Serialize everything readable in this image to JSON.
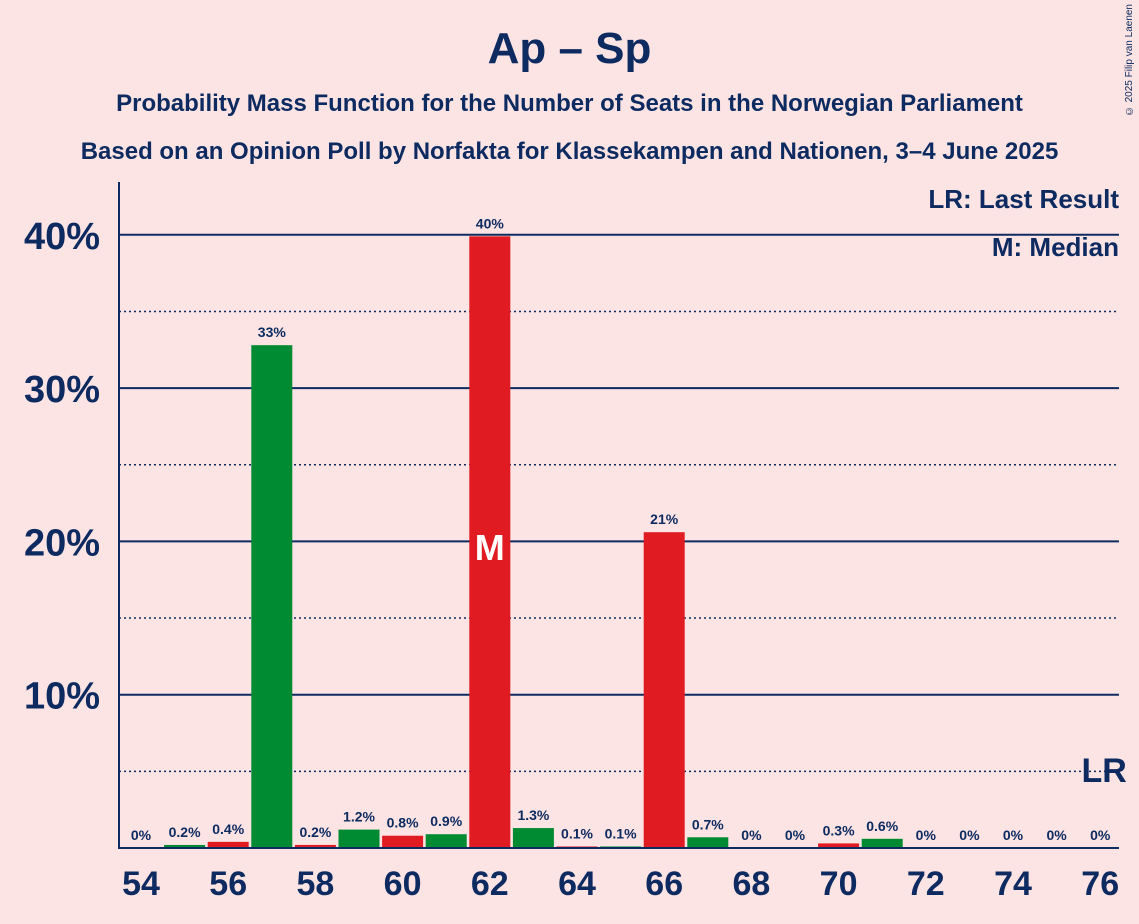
{
  "title": "Ap – Sp",
  "subtitle1": "Probability Mass Function for the Number of Seats in the Norwegian Parliament",
  "subtitle2": "Based on an Opinion Poll by Norfakta for Klassekampen and Nationen, 3–4 June 2025",
  "copyright": "© 2025 Filip van Laenen",
  "legend": {
    "last_result": "LR: Last Result",
    "median": "M: Median"
  },
  "colors": {
    "green": "#008a32",
    "red": "#e01b22",
    "axis": "#0d2b61",
    "background": "#fde4e4"
  },
  "chart_data": {
    "type": "bar",
    "xlabel": "",
    "ylabel": "",
    "ylim": [
      0,
      43
    ],
    "x_ticks": [
      54,
      56,
      58,
      60,
      62,
      64,
      66,
      68,
      70,
      72,
      74,
      76
    ],
    "y_ticks": [
      10,
      20,
      30,
      40
    ],
    "y_tick_labels": [
      "10%",
      "20%",
      "30%",
      "40%"
    ],
    "y_dotted": [
      5,
      15,
      25,
      35
    ],
    "median_seat": 62,
    "median_label": "M",
    "last_result_seat": 76,
    "last_result_label": "LR",
    "bars": [
      {
        "seat": 54,
        "value": 0,
        "label": "0%",
        "color": "red"
      },
      {
        "seat": 55,
        "value": 0.2,
        "label": "0.2%",
        "color": "green"
      },
      {
        "seat": 56,
        "value": 0.4,
        "label": "0.4%",
        "color": "red"
      },
      {
        "seat": 57,
        "value": 32.8,
        "label": "33%",
        "color": "green"
      },
      {
        "seat": 58,
        "value": 0.2,
        "label": "0.2%",
        "color": "red"
      },
      {
        "seat": 59,
        "value": 1.2,
        "label": "1.2%",
        "color": "green"
      },
      {
        "seat": 60,
        "value": 0.8,
        "label": "0.8%",
        "color": "red"
      },
      {
        "seat": 61,
        "value": 0.9,
        "label": "0.9%",
        "color": "green"
      },
      {
        "seat": 62,
        "value": 39.9,
        "label": "40%",
        "color": "red"
      },
      {
        "seat": 63,
        "value": 1.3,
        "label": "1.3%",
        "color": "green"
      },
      {
        "seat": 64,
        "value": 0.1,
        "label": "0.1%",
        "color": "red"
      },
      {
        "seat": 65,
        "value": 0.1,
        "label": "0.1%",
        "color": "green"
      },
      {
        "seat": 66,
        "value": 20.6,
        "label": "21%",
        "color": "red"
      },
      {
        "seat": 67,
        "value": 0.7,
        "label": "0.7%",
        "color": "green"
      },
      {
        "seat": 68,
        "value": 0,
        "label": "0%",
        "color": "red"
      },
      {
        "seat": 69,
        "value": 0,
        "label": "0%",
        "color": "green"
      },
      {
        "seat": 70,
        "value": 0.3,
        "label": "0.3%",
        "color": "red"
      },
      {
        "seat": 71,
        "value": 0.6,
        "label": "0.6%",
        "color": "green"
      },
      {
        "seat": 72,
        "value": 0,
        "label": "0%",
        "color": "red"
      },
      {
        "seat": 73,
        "value": 0,
        "label": "0%",
        "color": "green"
      },
      {
        "seat": 74,
        "value": 0,
        "label": "0%",
        "color": "red"
      },
      {
        "seat": 75,
        "value": 0,
        "label": "0%",
        "color": "green"
      },
      {
        "seat": 76,
        "value": 0,
        "label": "0%",
        "color": "red"
      }
    ]
  }
}
